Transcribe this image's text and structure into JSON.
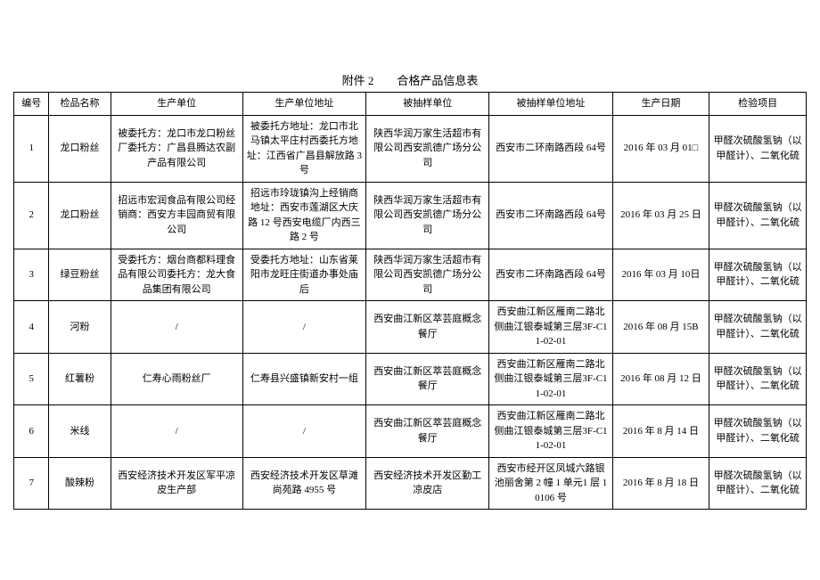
{
  "title": "附件 2　　合格产品信息表",
  "columns": [
    "编号",
    "检品名称",
    "生产单位",
    "生产单位地址",
    "被抽样单位",
    "被抽样单位地址",
    "生产日期",
    "检验项目"
  ],
  "rows": [
    {
      "no": "1",
      "name": "龙口粉丝",
      "producer": "被委托方：龙口市龙口粉丝厂委托方：广昌县腾达农副产品有限公司",
      "producer_addr": "被委托方地址：龙口市北马镇太平庄村西委托方地址：江西省广昌县解放路 3 号",
      "sampled": "陕西华润万家生活超市有限公司西安凯德广场分公司",
      "sampled_addr": "西安市二环南路西段 64号",
      "date": "2016 年 03 月 01□",
      "test": "甲醛次硫酸氢钠（以甲醛计）、二氧化硫"
    },
    {
      "no": "2",
      "name": "龙口粉丝",
      "producer": "招远市宏润食品有限公司经销商：西安方丰园商贸有限公司",
      "producer_addr": "招远市玲珑镇沟上经销商地址：西安市莲湖区大庆路 12 号西安电缆厂内西三路 2 号",
      "sampled": "陕西华润万家生活超市有限公司西安凯德广场分公司",
      "sampled_addr": "西安市二环南路西段 64号",
      "date": "2016 年 03 月 25 日",
      "test": "甲醛次硫酸氢钠（以甲醛计）、二氧化硫"
    },
    {
      "no": "3",
      "name": "绿豆粉丝",
      "producer": "受委托方：烟台商都料理食品有限公司委托方：龙大食品集团有限公司",
      "producer_addr": "受委托方地址：山东省莱阳市龙旺庄街道办事处庙后",
      "sampled": "陕西华润万家生活超市有限公司西安凯德广场分公司",
      "sampled_addr": "西安市二环南路西段 64号",
      "date": "2016 年 03 月 10日",
      "test": "甲醛次硫酸氢钠（以甲醛计）、二氧化硫"
    },
    {
      "no": "4",
      "name": "河粉",
      "producer": "/",
      "producer_addr": "/",
      "sampled": "西安曲江新区萃芸庭概念餐厅",
      "sampled_addr": "西安曲江新区雁南二路北侧曲江银泰城第三层3F-C11-02-01",
      "date": "2016 年 08 月 15B",
      "test": "甲醛次硫酸氢钠（以甲醛计）、二氧化硫"
    },
    {
      "no": "5",
      "name": "红薯粉",
      "producer": "仁寿心雨粉丝厂",
      "producer_addr": "仁寿县兴盛镇新安村一组",
      "sampled": "西安曲江新区萃芸庭概念餐厅",
      "sampled_addr": "西安曲江新区雁南二路北侧曲江银泰城第三层3F-C11-02-01",
      "date": "2016 年 08 月 12 日",
      "test": "甲醛次硫酸氢钠（以甲醛计）、二氧化硫"
    },
    {
      "no": "6",
      "name": "米线",
      "producer": "/",
      "producer_addr": "/",
      "sampled": "西安曲江新区萃芸庭概念餐厅",
      "sampled_addr": "西安曲江新区雁南二路北侧曲江银泰城第三层3F-C11-02-01",
      "date": "2016 年 8 月 14 日",
      "test": "甲醛次硫酸氢钠（以甲醛计）、二氧化硫"
    },
    {
      "no": "7",
      "name": "酸辣粉",
      "producer": "西安经济技术开发区军平凉皮生产部",
      "producer_addr": "西安经济技术开发区草滩尚苑路 4955 号",
      "sampled": "西安经济技术开发区勤工凉皮店",
      "sampled_addr": "西安市经开区凤城六路银池丽舍第 2 幢 1 单元1 层 10106 号",
      "date": "2016 年 8 月 18 日",
      "test": "甲醛次硫酸氢钠（以甲醛计）、二氧化硫"
    }
  ]
}
